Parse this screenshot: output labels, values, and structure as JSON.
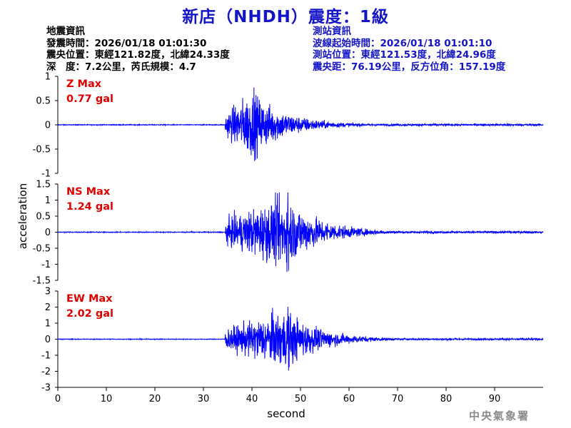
{
  "title": "新店（NHDH）震度：1級",
  "quake_info": {
    "heading": "地震資訊",
    "time": "發震時間：2026/01/18 01:01:30",
    "location": "震央位置：東經121.82度，北緯24.33度",
    "depth_magnitude": "深　度：7.2公里，芮氏規模：4.7"
  },
  "station_info": {
    "heading": "測站資訊",
    "wave_start": "波線起始時間：2026/01/18 01:01:10",
    "location": "測站位置：東經121.53度，北緯24.96度",
    "distance_azimuth": "震央距：76.19公里，反方位角：157.19度"
  },
  "agency": "中央氣象署",
  "colors": {
    "trace": "#0000ff",
    "max_label": "#e00000",
    "title": "#1414c8",
    "axis": "#000000"
  },
  "chart_data": {
    "type": "line",
    "xlabel": "second",
    "ylabel": "acceleration",
    "xlim": [
      0,
      100
    ],
    "xticks": [
      0,
      10,
      20,
      30,
      40,
      50,
      60,
      70,
      80,
      90
    ],
    "grid": false,
    "event_onset_s": 34.5,
    "panels": [
      {
        "name": "Z",
        "max_label": "Z Max",
        "max_value": "0.77 gal",
        "peak": 0.77,
        "ylim": [
          -1,
          1
        ],
        "yticks": [
          -1,
          -0.5,
          0,
          0.5,
          1
        ],
        "ytick_labels": [
          "-1",
          "-0.5",
          "0",
          "0.5",
          "1"
        ],
        "envelope_peak_s": 40
      },
      {
        "name": "NS",
        "max_label": "NS Max",
        "max_value": "1.24 gal",
        "peak": 1.24,
        "ylim": [
          -1.5,
          1.5
        ],
        "yticks": [
          -1.5,
          -1,
          -0.5,
          0,
          0.5,
          1,
          1.5
        ],
        "ytick_labels": [
          "-1.5",
          "-1",
          "-0.5",
          "0",
          "0.5",
          "1",
          "1.5"
        ],
        "envelope_peak_s": 47
      },
      {
        "name": "EW",
        "max_label": "EW Max",
        "max_value": "2.02 gal",
        "peak": 2.02,
        "ylim": [
          -3,
          3
        ],
        "yticks": [
          -3,
          -2,
          -1,
          0,
          1,
          2,
          3
        ],
        "ytick_labels": [
          "-3",
          "-2",
          "-1",
          "0",
          "1",
          "2",
          "3"
        ],
        "envelope_peak_s": 47
      }
    ]
  }
}
